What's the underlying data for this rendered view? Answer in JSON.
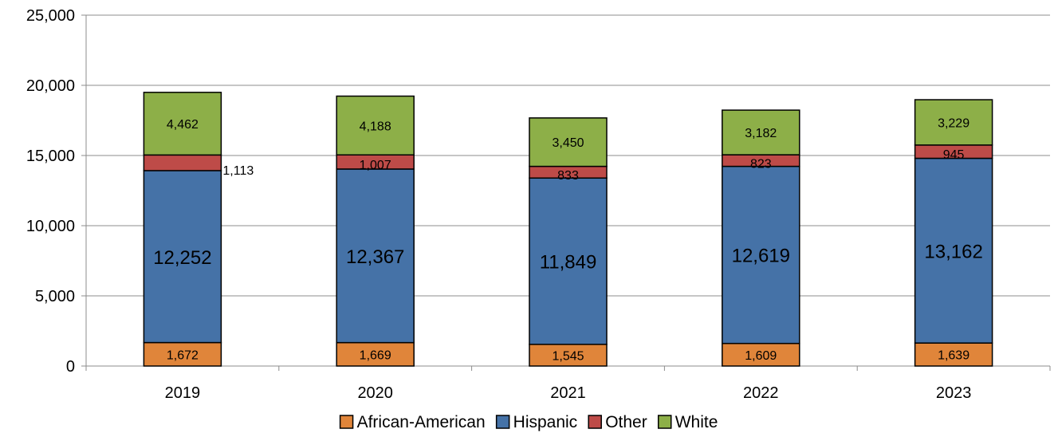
{
  "chart_data": {
    "type": "bar",
    "stacked": true,
    "categories": [
      "2019",
      "2020",
      "2021",
      "2022",
      "2023"
    ],
    "series": [
      {
        "name": "African-American",
        "color": "#E0853A",
        "values": [
          1672,
          1669,
          1545,
          1609,
          1639
        ]
      },
      {
        "name": "Hispanic",
        "color": "#4572A7",
        "values": [
          12252,
          12367,
          11849,
          12619,
          13162
        ]
      },
      {
        "name": "Other",
        "color": "#BE4B48",
        "values": [
          1113,
          1007,
          833,
          823,
          945
        ]
      },
      {
        "name": "White",
        "color": "#8DAF48",
        "values": [
          4462,
          4188,
          3450,
          3182,
          3229
        ]
      }
    ],
    "data_labels": {
      "African-American": [
        "1,672",
        "1,669",
        "1,545",
        "1,609",
        "1,639"
      ],
      "Hispanic": [
        "12,252",
        "12,367",
        "11,849",
        "12,619",
        "13,162"
      ],
      "Other": [
        "1,113",
        "1,007",
        "833",
        "823",
        "945"
      ],
      "White": [
        "4,462",
        "4,188",
        "3,450",
        "3,182",
        "3,229"
      ]
    },
    "y_ticks": [
      "0",
      "5,000",
      "10,000",
      "15,000",
      "20,000",
      "25,000"
    ],
    "ylim": [
      0,
      25000
    ],
    "grid": true,
    "legend_position": "bottom"
  }
}
